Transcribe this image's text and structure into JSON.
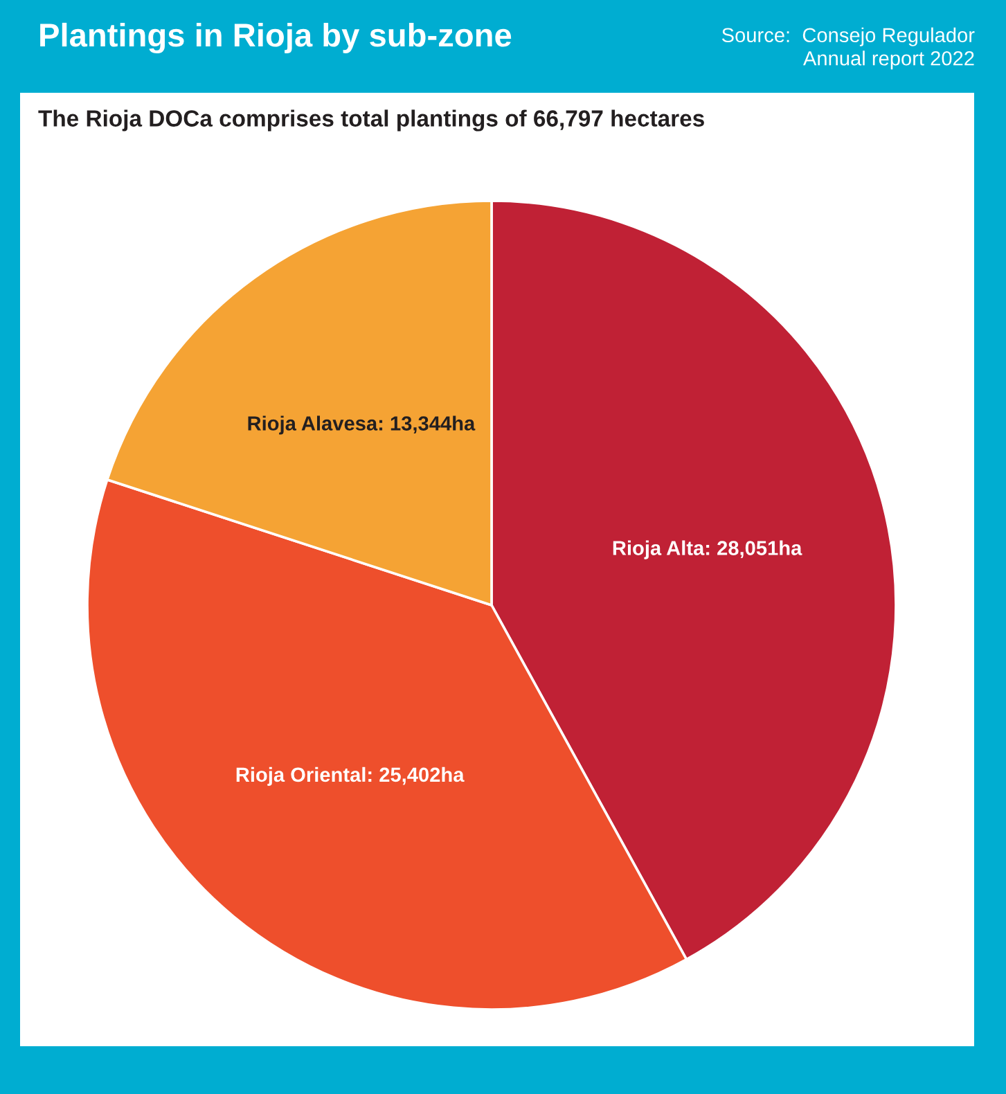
{
  "chart_data": {
    "type": "pie",
    "title": "Plantings in Rioja by sub-zone",
    "subtitle": "The Rioja DOCa comprises total plantings of 66,797 hectares",
    "annotations": [
      "Source:  Consejo Regulador\nAnnual report 2022"
    ],
    "categories": [
      "Rioja Alta",
      "Rioja Oriental",
      "Rioja Alavesa"
    ],
    "values": [
      28051,
      25402,
      13344
    ],
    "value_labels": [
      "28,051ha",
      "25,402ha",
      "13,344ha"
    ],
    "colors": [
      "#c02135",
      "#ee4f2c",
      "#f5a334"
    ]
  }
}
